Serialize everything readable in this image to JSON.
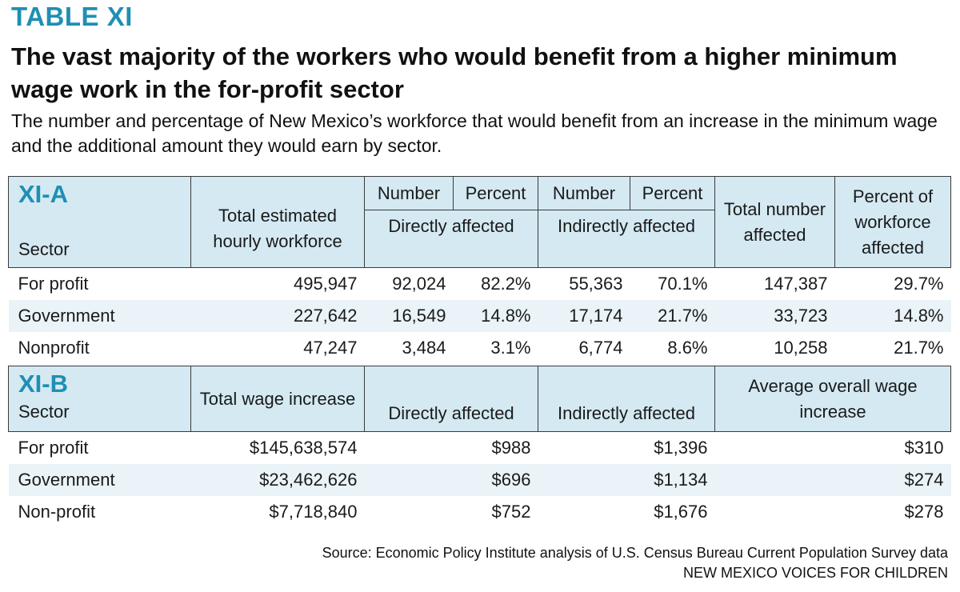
{
  "header": {
    "label": "TABLE XI",
    "title": "The vast majority of the workers who would benefit from a higher minimum wage work in the for-profit sector",
    "subtitle": "The number and percentage of New Mexico’s workforce that would benefit from an increase in the minimum wage and the additional amount they would earn by sector."
  },
  "table_a": {
    "code": "XI-A",
    "sector_label": "Sector",
    "col_total": "Total estimated hourly workforce",
    "sub_number_direct": "Number",
    "sub_percent_direct": "Percent",
    "sub_number_indirect": "Number",
    "sub_percent_indirect": "Percent",
    "group_direct": "Directly affected",
    "group_indirect": "Indirectly affected",
    "col_total_affected": "Total number affected",
    "col_pct_workforce": "Percent of workforce affected",
    "rows": [
      {
        "sector": "For profit",
        "workforce": "495,947",
        "direct_num": "92,024",
        "direct_pct": "82.2%",
        "indirect_num": "55,363",
        "indirect_pct": "70.1%",
        "total": "147,387",
        "pct": "29.7%"
      },
      {
        "sector": "Government",
        "workforce": "227,642",
        "direct_num": "16,549",
        "direct_pct": "14.8%",
        "indirect_num": "17,174",
        "indirect_pct": "21.7%",
        "total": "33,723",
        "pct": "14.8%"
      },
      {
        "sector": "Nonprofit",
        "workforce": "47,247",
        "direct_num": "3,484",
        "direct_pct": "3.1%",
        "indirect_num": "6,774",
        "indirect_pct": "8.6%",
        "total": "10,258",
        "pct": "21.7%"
      }
    ]
  },
  "table_b": {
    "code": "XI-B",
    "sector_label": "Sector",
    "col_total_wage": "Total wage increase",
    "col_direct": "Directly affected",
    "col_indirect": "Indirectly affected",
    "col_average": "Average overall wage increase",
    "rows": [
      {
        "sector": "For profit",
        "total": "$145,638,574",
        "direct": "$988",
        "indirect": "$1,396",
        "average": "$310"
      },
      {
        "sector": "Government",
        "total": "$23,462,626",
        "direct": "$696",
        "indirect": "$1,134",
        "average": "$274"
      },
      {
        "sector": "Non-profit",
        "total": "$7,718,840",
        "direct": "$752",
        "indirect": "$1,676",
        "average": "$278"
      }
    ]
  },
  "footer": {
    "source": "Source: Economic Policy Institute analysis of U.S. Census Bureau Current Population Survey data",
    "org": "NEW MEXICO VOICES FOR CHILDREN"
  }
}
